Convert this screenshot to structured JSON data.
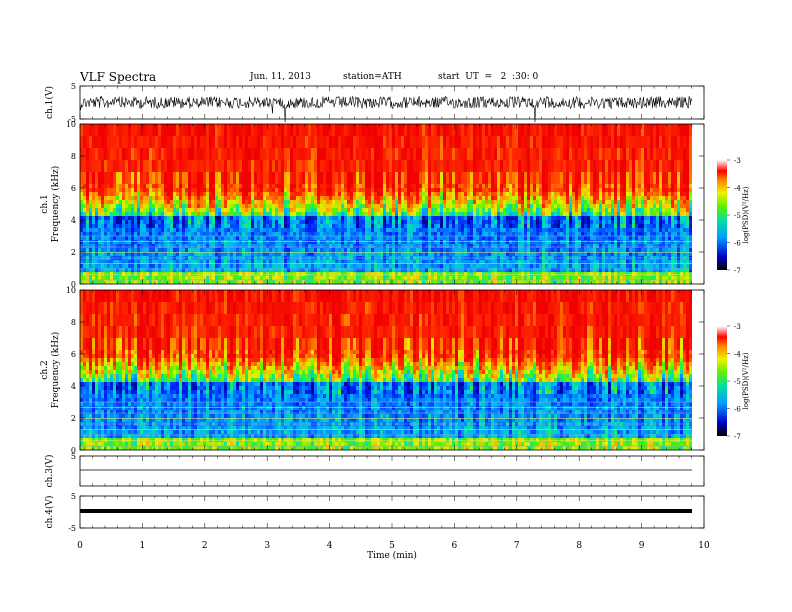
{
  "header": {
    "title": "VLF  Spectra",
    "date": "Jun. 11, 2013",
    "station": "station=ATH",
    "start": "start  UT  =   2  :30: 0"
  },
  "chart_data": [
    {
      "type": "line",
      "panel": "ch1-waveform",
      "ylabel": "ch.1(V)",
      "ylim": [
        -5,
        5
      ],
      "yticks": [
        "5",
        "-5"
      ],
      "xlim": [
        0,
        10
      ]
    },
    {
      "type": "heatmap",
      "panel": "ch1-spectrogram",
      "ylabel_channel": "ch.1",
      "ylabel": "Frequency  (kHz)",
      "ylim": [
        0,
        10
      ],
      "yticks": [
        "0",
        "2",
        "4",
        "6",
        "8",
        "10"
      ],
      "colorbar": {
        "label": "log(PSD)(V²/Hz)",
        "range": [
          -7,
          -3
        ],
        "ticks": [
          "-3",
          "-4",
          "-5",
          "-6",
          "-7"
        ]
      }
    },
    {
      "type": "heatmap",
      "panel": "ch2-spectrogram",
      "ylabel_channel": "ch.2",
      "ylabel": "Frequency  (kHz)",
      "ylim": [
        0,
        10
      ],
      "yticks": [
        "0",
        "2",
        "4",
        "6",
        "8",
        "10"
      ],
      "colorbar": {
        "label": "log(PSD)(V²/Hz)",
        "range": [
          -7,
          -3
        ],
        "ticks": [
          "-3",
          "-4",
          "-5",
          "-6",
          "-7"
        ]
      }
    },
    {
      "type": "line",
      "panel": "ch3-waveform",
      "ylabel": "ch.3(V)",
      "ylim": [
        -5,
        5
      ],
      "yticks": [
        "5"
      ]
    },
    {
      "type": "line",
      "panel": "ch4-waveform",
      "ylabel": "ch.4(V)",
      "ylim": [
        -5,
        5
      ],
      "yticks": [
        "5",
        "-5"
      ]
    }
  ],
  "xaxis": {
    "label": "Time  (min)",
    "ticks": [
      "0",
      "1",
      "2",
      "3",
      "4",
      "5",
      "6",
      "7",
      "8",
      "9",
      "10"
    ],
    "xlim": [
      0,
      10
    ]
  }
}
